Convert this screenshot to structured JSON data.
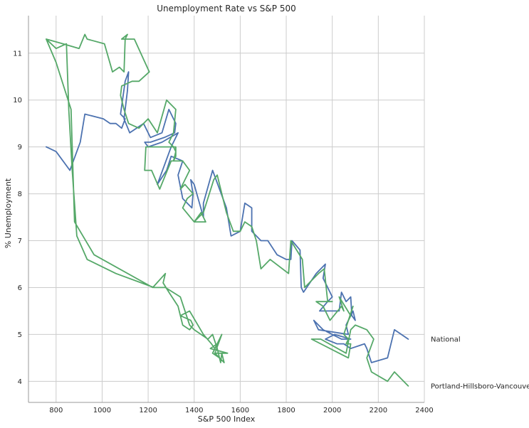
{
  "chart_data": {
    "type": "line",
    "title": "Unemployment Rate vs S&P 500",
    "xlabel": "S&P 500 Index",
    "ylabel": "% Unemployment",
    "xlim": [
      680,
      2400
    ],
    "ylim": [
      3.55,
      11.8
    ],
    "xticks": [
      800,
      1000,
      1200,
      1400,
      1600,
      1800,
      2000,
      2200,
      2400
    ],
    "yticks": [
      4,
      5,
      6,
      7,
      8,
      9,
      10,
      11
    ],
    "grid": true,
    "legend": "end-of-line labels",
    "series": [
      {
        "name": "National",
        "color": "#4c72b0",
        "points": [
          [
            757,
            9.0
          ],
          [
            800,
            8.9
          ],
          [
            860,
            8.5
          ],
          [
            905,
            9.1
          ],
          [
            925,
            9.7
          ],
          [
            1005,
            9.6
          ],
          [
            1035,
            9.5
          ],
          [
            1060,
            9.5
          ],
          [
            1085,
            9.4
          ],
          [
            1100,
            9.6
          ],
          [
            1080,
            9.7
          ],
          [
            1100,
            10.4
          ],
          [
            1115,
            10.6
          ],
          [
            1110,
            10.2
          ],
          [
            1095,
            9.6
          ],
          [
            1120,
            9.3
          ],
          [
            1180,
            9.5
          ],
          [
            1210,
            9.2
          ],
          [
            1260,
            9.3
          ],
          [
            1290,
            9.8
          ],
          [
            1320,
            9.5
          ],
          [
            1315,
            9.3
          ],
          [
            1270,
            9.2
          ],
          [
            1210,
            9.1
          ],
          [
            1185,
            9.1
          ],
          [
            1200,
            9.0
          ],
          [
            1260,
            9.1
          ],
          [
            1330,
            9.3
          ],
          [
            1300,
            9.0
          ],
          [
            1240,
            8.2
          ],
          [
            1280,
            8.5
          ],
          [
            1300,
            8.8
          ],
          [
            1350,
            8.7
          ],
          [
            1330,
            8.4
          ],
          [
            1350,
            7.9
          ],
          [
            1390,
            7.7
          ],
          [
            1395,
            8.0
          ],
          [
            1385,
            8.3
          ],
          [
            1400,
            8.2
          ],
          [
            1440,
            7.5
          ],
          [
            1440,
            7.8
          ],
          [
            1480,
            8.5
          ],
          [
            1540,
            7.7
          ],
          [
            1560,
            7.1
          ],
          [
            1600,
            7.2
          ],
          [
            1620,
            7.8
          ],
          [
            1650,
            7.7
          ],
          [
            1650,
            7.2
          ],
          [
            1690,
            7.0
          ],
          [
            1720,
            7.0
          ],
          [
            1760,
            6.7
          ],
          [
            1800,
            6.6
          ],
          [
            1820,
            6.6
          ],
          [
            1825,
            7.0
          ],
          [
            1860,
            6.8
          ],
          [
            1865,
            6.0
          ],
          [
            1875,
            5.9
          ],
          [
            1930,
            6.3
          ],
          [
            1970,
            6.5
          ],
          [
            1960,
            6.2
          ],
          [
            2000,
            5.8
          ],
          [
            1980,
            5.7
          ],
          [
            1945,
            5.5
          ],
          [
            1990,
            5.5
          ],
          [
            2030,
            5.5
          ],
          [
            2040,
            5.9
          ],
          [
            2060,
            5.7
          ],
          [
            2080,
            5.8
          ],
          [
            2085,
            5.4
          ],
          [
            2100,
            5.3
          ],
          [
            2090,
            5.5
          ],
          [
            2060,
            5.2
          ],
          [
            2070,
            5.0
          ],
          [
            1940,
            5.1
          ],
          [
            1920,
            5.3
          ],
          [
            1960,
            5.1
          ],
          [
            2000,
            5.0
          ],
          [
            2040,
            4.9
          ],
          [
            2060,
            4.9
          ],
          [
            2080,
            4.9
          ],
          [
            2010,
            5.0
          ],
          [
            1970,
            4.9
          ],
          [
            2020,
            4.8
          ],
          [
            2050,
            4.8
          ],
          [
            2080,
            4.7
          ],
          [
            2140,
            4.8
          ],
          [
            2150,
            4.7
          ],
          [
            2170,
            4.4
          ],
          [
            2240,
            4.5
          ],
          [
            2270,
            5.1
          ],
          [
            2330,
            4.9
          ]
        ]
      },
      {
        "name": "Portland-Hillsboro-Vancouver",
        "color": "#55a868",
        "points": [
          [
            757,
            11.3
          ],
          [
            800,
            10.8
          ],
          [
            865,
            9.8
          ],
          [
            880,
            7.4
          ],
          [
            965,
            6.7
          ],
          [
            1220,
            6.0
          ],
          [
            1275,
            6.3
          ],
          [
            1265,
            6.1
          ],
          [
            1290,
            5.9
          ],
          [
            1330,
            5.6
          ],
          [
            1350,
            5.2
          ],
          [
            1380,
            5.1
          ],
          [
            1395,
            5.2
          ],
          [
            1385,
            5.3
          ],
          [
            1340,
            5.4
          ],
          [
            1380,
            5.5
          ],
          [
            1440,
            5.0
          ],
          [
            1475,
            4.8
          ],
          [
            1490,
            4.7
          ],
          [
            1510,
            4.9
          ],
          [
            1520,
            5.0
          ],
          [
            1490,
            4.6
          ],
          [
            1545,
            4.6
          ],
          [
            1470,
            4.7
          ],
          [
            1500,
            4.8
          ],
          [
            1480,
            4.6
          ],
          [
            1510,
            4.5
          ],
          [
            1490,
            4.6
          ],
          [
            1530,
            4.4
          ],
          [
            1520,
            4.6
          ],
          [
            1515,
            4.4
          ],
          [
            1500,
            4.7
          ],
          [
            1480,
            5.0
          ],
          [
            1460,
            4.9
          ],
          [
            1400,
            5.1
          ],
          [
            1380,
            5.2
          ],
          [
            1340,
            5.8
          ],
          [
            1275,
            6.0
          ],
          [
            1225,
            6.0
          ],
          [
            1060,
            6.3
          ],
          [
            935,
            6.6
          ],
          [
            890,
            7.1
          ],
          [
            870,
            8.5
          ],
          [
            855,
            9.8
          ],
          [
            845,
            11.2
          ],
          [
            800,
            11.1
          ],
          [
            757,
            11.3
          ],
          [
            830,
            11.2
          ],
          [
            900,
            11.1
          ],
          [
            925,
            11.4
          ],
          [
            935,
            11.3
          ],
          [
            1010,
            11.2
          ],
          [
            1045,
            10.6
          ],
          [
            1075,
            10.7
          ],
          [
            1095,
            10.6
          ],
          [
            1100,
            11.3
          ],
          [
            1110,
            11.4
          ],
          [
            1085,
            11.3
          ],
          [
            1140,
            11.3
          ],
          [
            1205,
            10.6
          ],
          [
            1160,
            10.4
          ],
          [
            1130,
            10.4
          ],
          [
            1085,
            10.3
          ],
          [
            1080,
            10.1
          ],
          [
            1095,
            9.8
          ],
          [
            1115,
            9.5
          ],
          [
            1160,
            9.4
          ],
          [
            1200,
            9.6
          ],
          [
            1240,
            9.3
          ],
          [
            1280,
            10.0
          ],
          [
            1320,
            9.8
          ],
          [
            1310,
            9.3
          ],
          [
            1290,
            9.1
          ],
          [
            1310,
            9.0
          ],
          [
            1320,
            8.9
          ],
          [
            1310,
            8.7
          ],
          [
            1320,
            8.8
          ],
          [
            1320,
            9.0
          ],
          [
            1190,
            9.0
          ],
          [
            1185,
            8.5
          ],
          [
            1215,
            8.5
          ],
          [
            1250,
            8.1
          ],
          [
            1300,
            8.7
          ],
          [
            1350,
            8.7
          ],
          [
            1380,
            8.5
          ],
          [
            1340,
            8.1
          ],
          [
            1360,
            8.2
          ],
          [
            1395,
            8.0
          ],
          [
            1370,
            7.9
          ],
          [
            1350,
            7.7
          ],
          [
            1400,
            7.4
          ],
          [
            1430,
            7.6
          ],
          [
            1440,
            7.5
          ],
          [
            1450,
            7.4
          ],
          [
            1400,
            7.4
          ],
          [
            1440,
            7.6
          ],
          [
            1485,
            8.3
          ],
          [
            1500,
            8.4
          ],
          [
            1540,
            7.6
          ],
          [
            1570,
            7.2
          ],
          [
            1600,
            7.2
          ],
          [
            1620,
            7.4
          ],
          [
            1650,
            7.3
          ],
          [
            1670,
            7.0
          ],
          [
            1690,
            6.4
          ],
          [
            1730,
            6.6
          ],
          [
            1810,
            6.3
          ],
          [
            1820,
            7.0
          ],
          [
            1870,
            6.6
          ],
          [
            1880,
            6.0
          ],
          [
            1940,
            6.3
          ],
          [
            1965,
            6.4
          ],
          [
            1980,
            5.7
          ],
          [
            2000,
            5.7
          ],
          [
            1930,
            5.7
          ],
          [
            1960,
            5.6
          ],
          [
            1990,
            5.3
          ],
          [
            2040,
            5.6
          ],
          [
            2050,
            5.5
          ],
          [
            2030,
            5.8
          ],
          [
            2080,
            5.4
          ],
          [
            2070,
            5.3
          ],
          [
            2090,
            5.6
          ],
          [
            2050,
            5.0
          ],
          [
            2070,
            4.9
          ],
          [
            2060,
            4.8
          ],
          [
            2080,
            4.8
          ],
          [
            2070,
            4.5
          ],
          [
            1910,
            4.9
          ],
          [
            1950,
            4.9
          ],
          [
            2060,
            4.6
          ],
          [
            2080,
            5.1
          ],
          [
            2100,
            5.2
          ],
          [
            2150,
            5.1
          ],
          [
            2180,
            4.9
          ],
          [
            2150,
            4.5
          ],
          [
            2170,
            4.2
          ],
          [
            2240,
            4.0
          ],
          [
            2270,
            4.2
          ],
          [
            2330,
            3.9
          ]
        ]
      }
    ]
  }
}
